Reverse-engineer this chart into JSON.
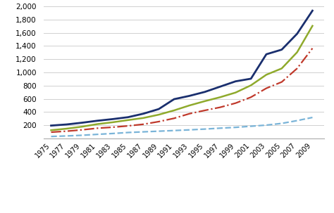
{
  "years": [
    1975,
    1977,
    1979,
    1981,
    1983,
    1985,
    1987,
    1989,
    1991,
    1993,
    1995,
    1997,
    1999,
    2001,
    2003,
    2005,
    2007,
    2009
  ],
  "female_migrants": [
    30,
    38,
    48,
    62,
    75,
    90,
    100,
    110,
    120,
    130,
    142,
    156,
    168,
    185,
    202,
    228,
    270,
    318
  ],
  "male_migrants": [
    95,
    110,
    130,
    155,
    170,
    190,
    215,
    255,
    305,
    375,
    425,
    472,
    535,
    625,
    760,
    855,
    1060,
    1365
  ],
  "total_migrants": [
    125,
    148,
    178,
    217,
    245,
    278,
    310,
    360,
    425,
    500,
    565,
    625,
    695,
    805,
    965,
    1060,
    1305,
    1705
  ],
  "total_population": [
    195,
    212,
    238,
    268,
    293,
    322,
    375,
    445,
    595,
    645,
    705,
    785,
    865,
    905,
    1275,
    1345,
    1585,
    1935
  ],
  "female_color": "#7ab4d8",
  "male_color": "#c0392b",
  "total_migrants_color": "#8faa2c",
  "total_population_color": "#1a2f6e",
  "ylim": [
    0,
    2000
  ],
  "yticks": [
    0,
    200,
    400,
    600,
    800,
    1000,
    1200,
    1400,
    1600,
    1800,
    2000
  ],
  "ytick_labels": [
    "",
    "200",
    "400",
    "600",
    "800",
    "1,000",
    "1,200",
    "1,400",
    "1,600",
    "1,800",
    "2,000"
  ],
  "bg_color": "#ffffff",
  "grid_color": "#d0d0d0"
}
